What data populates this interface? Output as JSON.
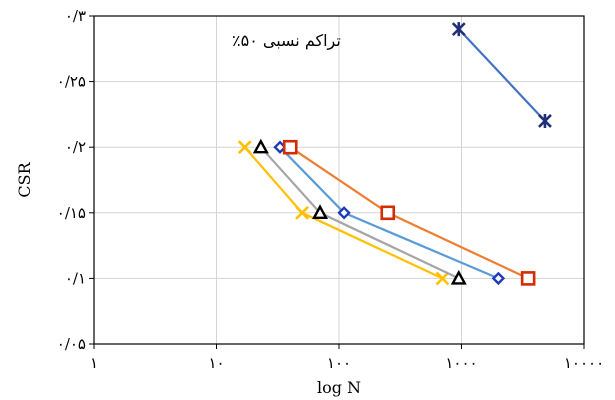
{
  "chart_data": {
    "type": "line",
    "title": "",
    "xlabel": "log N",
    "ylabel": "CSR",
    "x_scale": "log",
    "xlim": [
      1,
      10000
    ],
    "ylim": [
      0.05,
      0.3
    ],
    "grid": true,
    "x_tick_labels": [
      "۱",
      "۱۰",
      "۱۰۰",
      "۱۰۰۰",
      "۱۰۰۰۰"
    ],
    "y_tick_labels": [
      "۰/۰۵",
      "۰/۱",
      "۰/۱۵",
      "۰/۲",
      "۰/۲۵",
      "۰/۳"
    ],
    "annotation": "تراکم نسبی ۵۰٪",
    "series": [
      {
        "marker": "x",
        "color": "#FFC000",
        "x": [
          17,
          50,
          700
        ],
        "y": [
          0.2,
          0.15,
          0.1
        ]
      },
      {
        "marker": "triangle",
        "color": "#A5A5A5",
        "x": [
          23,
          70,
          950
        ],
        "y": [
          0.2,
          0.15,
          0.1
        ]
      },
      {
        "marker": "diamond",
        "color": "#5B9BD5",
        "x": [
          33,
          110,
          2000
        ],
        "y": [
          0.2,
          0.15,
          0.1
        ]
      },
      {
        "marker": "square",
        "color": "#ED7D31",
        "x": [
          40,
          250,
          3500
        ],
        "y": [
          0.2,
          0.15,
          0.1
        ]
      },
      {
        "marker": "star",
        "color": "#4472C4",
        "x": [
          950,
          4800
        ],
        "y": [
          0.29,
          0.22
        ]
      }
    ]
  }
}
